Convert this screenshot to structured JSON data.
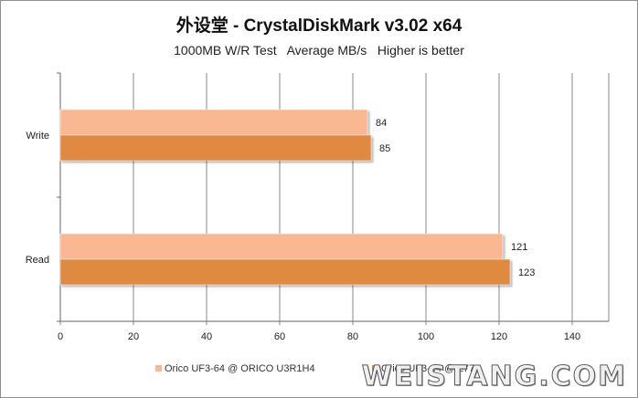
{
  "chart_data": {
    "type": "bar",
    "orientation": "horizontal",
    "title": "外设堂 - CrystalDiskMark v3.02 x64",
    "subtitle": "1000MB W/R Test   Average MB/s   Higher is better",
    "categories": [
      "Write",
      "Read"
    ],
    "series": [
      {
        "name": "Orico UF3-64 @ ORICO U3R1H4",
        "values": [
          84,
          121
        ],
        "color": "#f9b792"
      },
      {
        "name": "Orico UF3-64 @ Z77",
        "values": [
          85,
          123
        ],
        "color": "#e0893f"
      }
    ],
    "xlim": [
      0,
      150
    ],
    "xticks": [
      0,
      20,
      40,
      60,
      80,
      100,
      120,
      140
    ],
    "grid": true,
    "legend_position": "bottom"
  },
  "watermark": "WEISTANG.COM"
}
